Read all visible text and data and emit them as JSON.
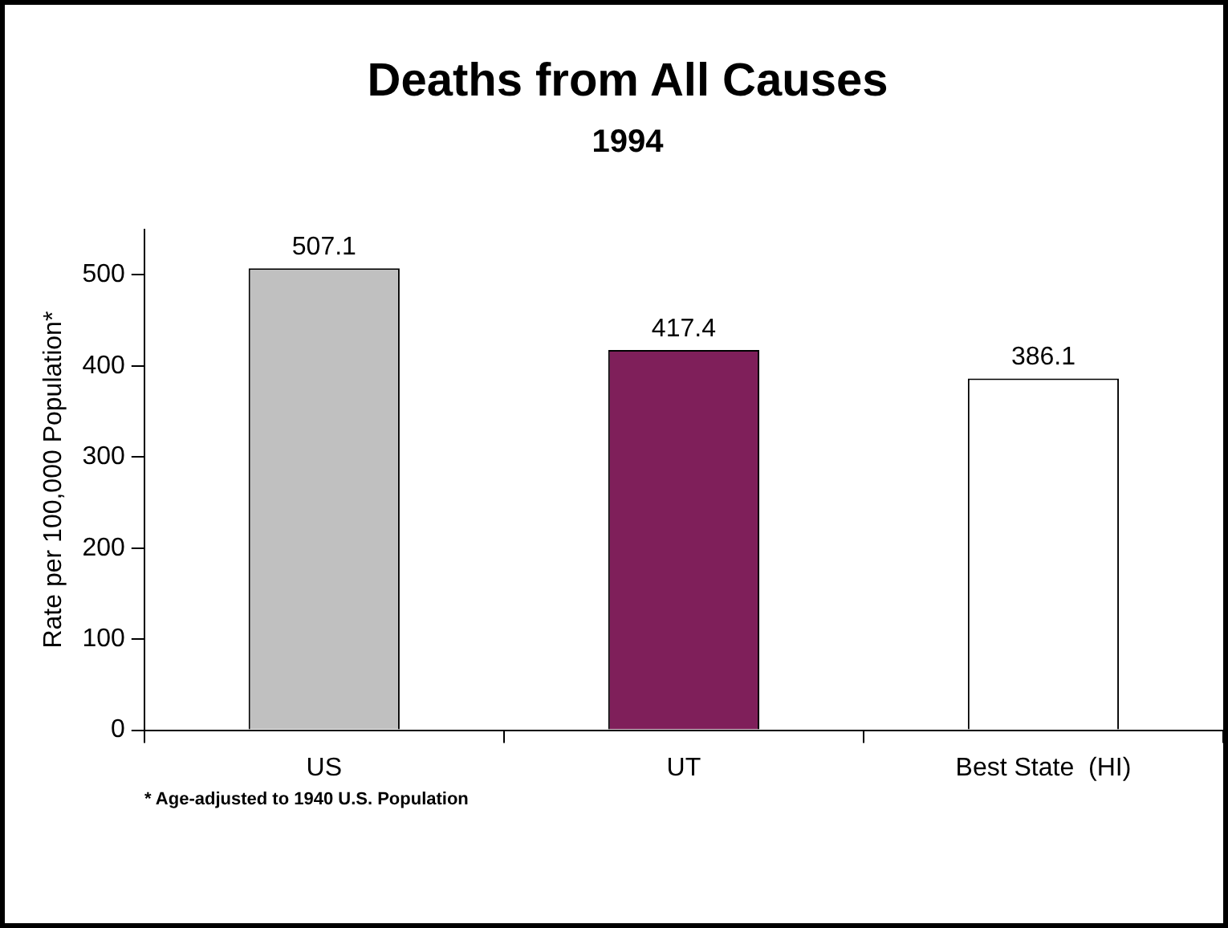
{
  "chart_data": {
    "type": "bar",
    "title": "Deaths from All Causes",
    "subtitle": "1994",
    "ylabel": "Rate per 100,000 Population*",
    "categories": [
      "US",
      "UT",
      "Best State  (HI)"
    ],
    "values": [
      507.1,
      417.4,
      386.1
    ],
    "colors": [
      "#c0c0c0",
      "#7f1f5a",
      "#ffffff"
    ],
    "ylim": [
      0,
      550
    ],
    "yticks": [
      0,
      100,
      200,
      300,
      400,
      500
    ],
    "data_labels": true,
    "legend": false,
    "annotations": [
      "* Age-adjusted to 1940 U.S. Population"
    ]
  }
}
